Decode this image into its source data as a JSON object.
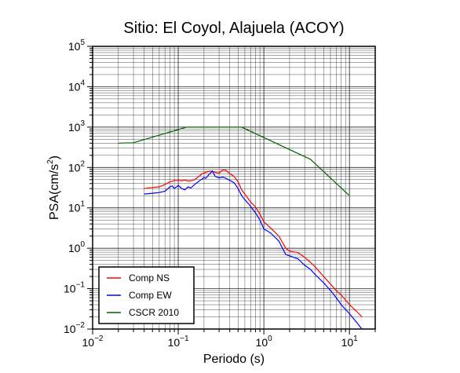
{
  "chart_data": {
    "type": "line",
    "title": "Sitio: El Coyol, Alajuela (ACOY)",
    "xlabel": "Periodo (s)",
    "ylabel": "PSA(cm/s2)",
    "ylabel_base": "PSA(cm/s",
    "ylabel_sup": "2",
    "ylabel_close": ")",
    "x_scale": "log",
    "y_scale": "log",
    "xlim": [
      0.01,
      20
    ],
    "ylim": [
      0.01,
      100000
    ],
    "grid": true,
    "legend_position": "bottom-left",
    "x_ticks": [
      {
        "value": 0.01,
        "base": "10",
        "exp": "−2"
      },
      {
        "value": 0.1,
        "base": "10",
        "exp": "−1"
      },
      {
        "value": 1,
        "base": "10",
        "exp": "0"
      },
      {
        "value": 10,
        "base": "10",
        "exp": "1"
      }
    ],
    "y_ticks": [
      {
        "value": 0.01,
        "base": "10",
        "exp": "−2"
      },
      {
        "value": 0.1,
        "base": "10",
        "exp": "−1"
      },
      {
        "value": 1,
        "base": "10",
        "exp": "0"
      },
      {
        "value": 10,
        "base": "10",
        "exp": "1"
      },
      {
        "value": 100,
        "base": "10",
        "exp": "2"
      },
      {
        "value": 1000,
        "base": "10",
        "exp": "3"
      },
      {
        "value": 10000,
        "base": "10",
        "exp": "4"
      },
      {
        "value": 100000,
        "base": "10",
        "exp": "5"
      }
    ],
    "series": [
      {
        "name": "Comp NS",
        "color": "#ff0000",
        "points": [
          [
            0.04,
            30
          ],
          [
            0.05,
            32
          ],
          [
            0.06,
            33
          ],
          [
            0.07,
            38
          ],
          [
            0.08,
            44
          ],
          [
            0.09,
            47
          ],
          [
            0.1,
            48
          ],
          [
            0.11,
            47
          ],
          [
            0.12,
            49
          ],
          [
            0.13,
            46
          ],
          [
            0.15,
            48
          ],
          [
            0.17,
            58
          ],
          [
            0.19,
            70
          ],
          [
            0.21,
            76
          ],
          [
            0.23,
            81
          ],
          [
            0.25,
            80
          ],
          [
            0.27,
            76
          ],
          [
            0.3,
            72
          ],
          [
            0.33,
            87
          ],
          [
            0.36,
            86
          ],
          [
            0.4,
            70
          ],
          [
            0.45,
            60
          ],
          [
            0.5,
            44
          ],
          [
            0.55,
            28
          ],
          [
            0.6,
            22
          ],
          [
            0.7,
            14
          ],
          [
            0.8,
            10.5
          ],
          [
            0.9,
            7
          ],
          [
            1.0,
            4.5
          ],
          [
            1.2,
            3.2
          ],
          [
            1.5,
            2.0
          ],
          [
            1.8,
            1.0
          ],
          [
            2.0,
            0.85
          ],
          [
            2.5,
            0.78
          ],
          [
            3.0,
            0.6
          ],
          [
            3.5,
            0.45
          ],
          [
            4.0,
            0.34
          ],
          [
            5.0,
            0.2
          ],
          [
            6.0,
            0.13
          ],
          [
            7.0,
            0.09
          ],
          [
            8.0,
            0.07
          ],
          [
            10.0,
            0.04
          ],
          [
            12.0,
            0.028
          ],
          [
            14.0,
            0.02
          ]
        ]
      },
      {
        "name": "Comp EW",
        "color": "#0000ff",
        "points": [
          [
            0.04,
            22
          ],
          [
            0.05,
            23
          ],
          [
            0.06,
            24
          ],
          [
            0.07,
            26
          ],
          [
            0.08,
            33
          ],
          [
            0.085,
            35
          ],
          [
            0.09,
            30
          ],
          [
            0.1,
            36
          ],
          [
            0.11,
            30
          ],
          [
            0.12,
            28
          ],
          [
            0.13,
            33
          ],
          [
            0.14,
            31
          ],
          [
            0.16,
            40
          ],
          [
            0.18,
            48
          ],
          [
            0.2,
            56
          ],
          [
            0.21,
            54
          ],
          [
            0.23,
            68
          ],
          [
            0.25,
            82
          ],
          [
            0.27,
            60
          ],
          [
            0.3,
            55
          ],
          [
            0.33,
            58
          ],
          [
            0.36,
            54
          ],
          [
            0.4,
            48
          ],
          [
            0.45,
            42
          ],
          [
            0.5,
            30
          ],
          [
            0.55,
            20
          ],
          [
            0.6,
            16
          ],
          [
            0.7,
            11
          ],
          [
            0.8,
            7.5
          ],
          [
            0.9,
            5
          ],
          [
            1.0,
            3.0
          ],
          [
            1.2,
            2.4
          ],
          [
            1.5,
            1.5
          ],
          [
            1.8,
            0.7
          ],
          [
            2.0,
            0.65
          ],
          [
            2.5,
            0.55
          ],
          [
            3.0,
            0.38
          ],
          [
            3.5,
            0.3
          ],
          [
            4.0,
            0.22
          ],
          [
            5.0,
            0.14
          ],
          [
            6.0,
            0.09
          ],
          [
            7.0,
            0.06
          ],
          [
            8.0,
            0.04
          ],
          [
            10.0,
            0.024
          ],
          [
            12.0,
            0.015
          ],
          [
            14.0,
            0.01
          ]
        ]
      },
      {
        "name": "CSCR 2010",
        "color": "#006400",
        "points": [
          [
            0.02,
            400
          ],
          [
            0.03,
            410
          ],
          [
            0.125,
            1000
          ],
          [
            0.55,
            1000
          ],
          [
            3.5,
            160
          ],
          [
            10.0,
            20
          ]
        ]
      }
    ]
  }
}
